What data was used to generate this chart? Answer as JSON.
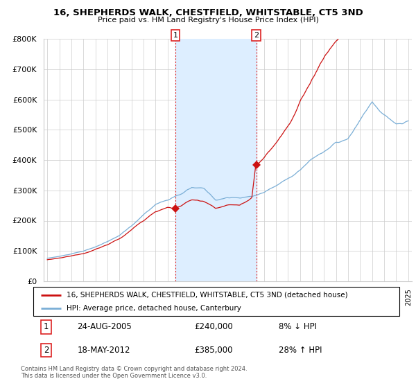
{
  "title": "16, SHEPHERDS WALK, CHESTFIELD, WHITSTABLE, CT5 3ND",
  "subtitle": "Price paid vs. HM Land Registry's House Price Index (HPI)",
  "legend_line1": "16, SHEPHERDS WALK, CHESTFIELD, WHITSTABLE, CT5 3ND (detached house)",
  "legend_line2": "HPI: Average price, detached house, Canterbury",
  "annotation1_date": "24-AUG-2005",
  "annotation1_price": "£240,000",
  "annotation1_rel": "8% ↓ HPI",
  "annotation2_date": "18-MAY-2012",
  "annotation2_price": "£385,000",
  "annotation2_rel": "28% ↑ HPI",
  "footer": "Contains HM Land Registry data © Crown copyright and database right 2024.\nThis data is licensed under the Open Government Licence v3.0.",
  "purchase1_year": 2005.64,
  "purchase1_price": 240000,
  "purchase2_year": 2012.38,
  "purchase2_price": 385000,
  "hpi_color": "#7aaed6",
  "price_color": "#cc1111",
  "vline_color": "#dd2222",
  "shade_color": "#ddeeff",
  "bg_color": "#ffffff",
  "grid_color": "#cccccc",
  "ylim_min": 0,
  "ylim_max": 800000,
  "xlim_min": 1994.7,
  "xlim_max": 2025.3
}
